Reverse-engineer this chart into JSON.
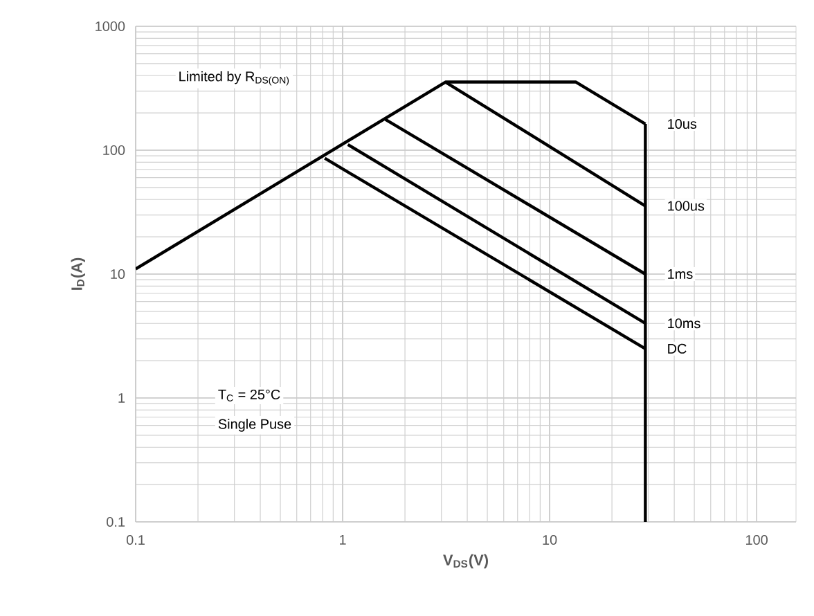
{
  "chart_data": {
    "type": "line",
    "xlabel": "V$_{DS}$(V)",
    "ylabel": "I$_{D}$(A)",
    "log": "xy",
    "grid": true,
    "xlim": [
      0.1,
      155
    ],
    "ylim": [
      0.1,
      1000
    ],
    "xticks": [
      0.1,
      1,
      10,
      100
    ],
    "yticks": [
      0.1,
      1,
      10,
      100,
      1000
    ],
    "series": [
      {
        "color": "#000000",
        "x": [
          29,
          29
        ],
        "values": [
          163,
          0.1
        ]
      },
      {
        "name": "10us",
        "color": "#000000",
        "x": [
          0.1,
          3.14,
          13.4,
          29
        ],
        "values": [
          11,
          355,
          355,
          163
        ]
      },
      {
        "name": "100us",
        "color": "#000000",
        "x": [
          3.14,
          29
        ],
        "values": [
          355,
          35.5
        ]
      },
      {
        "name": "1ms",
        "color": "#000000",
        "x": [
          1.61,
          29
        ],
        "values": [
          177,
          10
        ]
      },
      {
        "name": "10ms",
        "color": "#000000",
        "x": [
          1.06,
          29
        ],
        "values": [
          111,
          4
        ]
      },
      {
        "name": "DC",
        "color": "#000000",
        "x": [
          0.82,
          29
        ],
        "values": [
          86,
          2.5
        ]
      }
    ],
    "annotations": [
      "Limited by R$_{DS(ON)}$",
      "T$_{C}$ = 25°C",
      "Single Puse"
    ]
  }
}
